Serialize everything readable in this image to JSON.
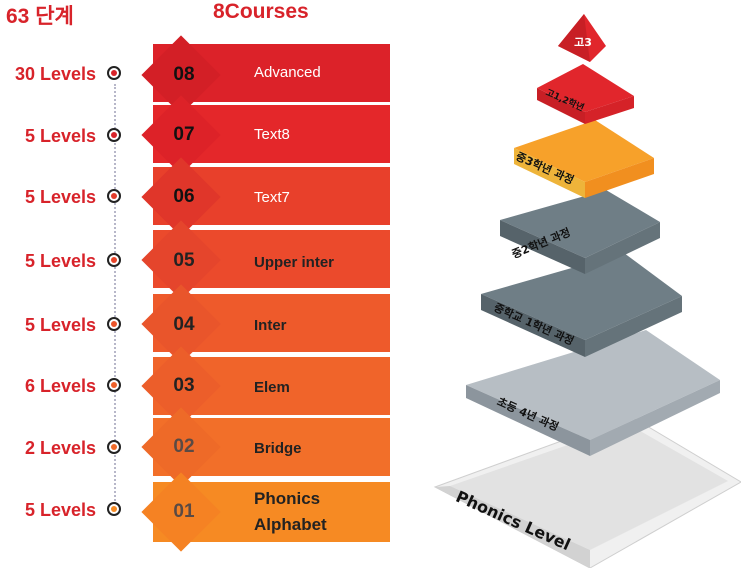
{
  "header": {
    "levels_total": "63 단계",
    "courses_total": "8Courses"
  },
  "courses": [
    {
      "levels": "30 Levels",
      "number": "08",
      "name": "Advanced",
      "color": "#dc2229"
    },
    {
      "levels": "5 Levels",
      "number": "07",
      "name": "Text8",
      "color": "#e4272a"
    },
    {
      "levels": "5 Levels",
      "number": "06",
      "name": "Text7",
      "color": "#e8402b"
    },
    {
      "levels": "5 Levels",
      "number": "05",
      "name": "Upper inter",
      "color": "#eb4a2c"
    },
    {
      "levels": "5 Levels",
      "number": "04",
      "name": "Inter",
      "color": "#ee5a2b"
    },
    {
      "levels": "6 Levels",
      "number": "03",
      "name": "Elem",
      "color": "#f0642a"
    },
    {
      "levels": "2 Levels",
      "number": "02",
      "name": "Bridge",
      "color": "#f26f29"
    },
    {
      "levels": "5 Levels",
      "number": "01",
      "name_line1": "Phonics",
      "name_line2": "Alphabet",
      "color": "#f68a23"
    }
  ],
  "pyramid": {
    "tiers": [
      {
        "label": "고3",
        "color": "#e1262c"
      },
      {
        "label": "고1,2학년",
        "color": "#e1262c"
      },
      {
        "label": "중3학년 과정",
        "color": "#f7a12a"
      },
      {
        "label": "중2학년 과정",
        "color": "#5f6f78"
      },
      {
        "label": "중학교 1학년 과정",
        "color": "#5f6f78"
      },
      {
        "label": "초등 4년 과정",
        "color": "#9aa3ab"
      },
      {
        "label": "Phonics Level",
        "color": "#e2e2e2"
      }
    ]
  }
}
